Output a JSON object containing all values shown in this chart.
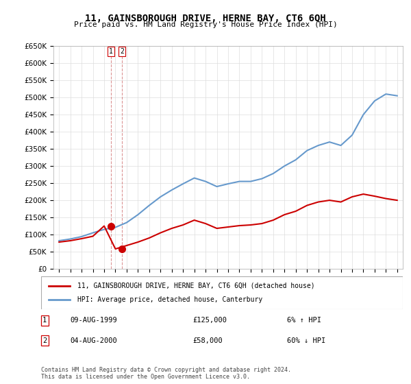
{
  "title": "11, GAINSBOROUGH DRIVE, HERNE BAY, CT6 6QH",
  "subtitle": "Price paid vs. HM Land Registry's House Price Index (HPI)",
  "legend_line1": "11, GAINSBOROUGH DRIVE, HERNE BAY, CT6 6QH (detached house)",
  "legend_line2": "HPI: Average price, detached house, Canterbury",
  "transactions": [
    {
      "label": "1",
      "date": "09-AUG-1999",
      "price": "£125,000",
      "change": "6% ↑ HPI",
      "year": 1999.6,
      "value": 125000
    },
    {
      "label": "2",
      "date": "04-AUG-2000",
      "price": "£58,000",
      "change": "60% ↓ HPI",
      "year": 2000.6,
      "value": 58000
    }
  ],
  "footnote": "Contains HM Land Registry data © Crown copyright and database right 2024.\nThis data is licensed under the Open Government Licence v3.0.",
  "hpi_color": "#6699cc",
  "price_color": "#cc0000",
  "dot_color": "#cc0000",
  "marker_outline": "#cc0000",
  "dashed_line_color": "#cc6666",
  "ylim": [
    0,
    650000
  ],
  "yticks": [
    0,
    50000,
    100000,
    150000,
    200000,
    250000,
    300000,
    350000,
    400000,
    450000,
    500000,
    550000,
    600000,
    650000
  ],
  "xlim_start": 1995,
  "xlim_end": 2025.5,
  "hpi_years": [
    1995,
    1996,
    1997,
    1998,
    1999,
    2000,
    2001,
    2002,
    2003,
    2004,
    2005,
    2006,
    2007,
    2008,
    2009,
    2010,
    2011,
    2012,
    2013,
    2014,
    2015,
    2016,
    2017,
    2018,
    2019,
    2020,
    2021,
    2022,
    2023,
    2024,
    2025
  ],
  "hpi_values": [
    82000,
    87000,
    94000,
    105000,
    115000,
    121000,
    135000,
    158000,
    185000,
    210000,
    230000,
    248000,
    265000,
    255000,
    240000,
    248000,
    255000,
    255000,
    263000,
    278000,
    300000,
    318000,
    345000,
    360000,
    370000,
    360000,
    390000,
    450000,
    490000,
    510000,
    505000
  ],
  "price_years": [
    1995,
    1996,
    1997,
    1998,
    1999,
    2000,
    2001,
    2002,
    2003,
    2004,
    2005,
    2006,
    2007,
    2008,
    2009,
    2010,
    2011,
    2012,
    2013,
    2014,
    2015,
    2016,
    2017,
    2018,
    2019,
    2020,
    2021,
    2022,
    2023,
    2024,
    2025
  ],
  "price_values": [
    78000,
    82000,
    88000,
    95000,
    125000,
    58000,
    68000,
    78000,
    90000,
    105000,
    118000,
    128000,
    142000,
    132000,
    118000,
    122000,
    126000,
    128000,
    132000,
    142000,
    158000,
    168000,
    185000,
    195000,
    200000,
    195000,
    210000,
    218000,
    212000,
    205000,
    200000
  ]
}
